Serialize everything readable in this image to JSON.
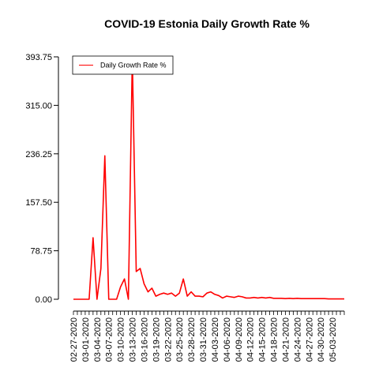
{
  "chart_data": {
    "type": "line",
    "title": "COVID-19 Estonia Daily Growth Rate %",
    "xlabel": "",
    "ylabel": "",
    "ylim": [
      0,
      393.75
    ],
    "y_ticks": [
      0,
      78.75,
      157.5,
      236.25,
      315,
      393.75
    ],
    "y_tick_labels": [
      "0.00",
      "78.75",
      "157.50",
      "236.25",
      "315.00",
      "393.75"
    ],
    "x_tick_labels": [
      "02-27-2020",
      "03-01-2020",
      "03-04-2020",
      "03-07-2020",
      "03-10-2020",
      "03-13-2020",
      "03-16-2020",
      "03-19-2020",
      "03-22-2020",
      "03-25-2020",
      "03-28-2020",
      "03-31-2020",
      "04-03-2020",
      "04-06-2020",
      "04-09-2020",
      "04-12-2020",
      "04-15-2020",
      "04-18-2020",
      "04-21-2020",
      "04-24-2020",
      "04-27-2020",
      "04-30-2020",
      "05-03-2020"
    ],
    "legend": {
      "position": "top-left",
      "entries": [
        "Daily Growth Rate %"
      ]
    },
    "grid": false,
    "series": [
      {
        "name": "Daily Growth Rate %",
        "color": "#ff0000",
        "x": [
          "02-27-2020",
          "02-28-2020",
          "02-29-2020",
          "03-01-2020",
          "03-02-2020",
          "03-03-2020",
          "03-04-2020",
          "03-05-2020",
          "03-06-2020",
          "03-07-2020",
          "03-08-2020",
          "03-09-2020",
          "03-10-2020",
          "03-11-2020",
          "03-12-2020",
          "03-13-2020",
          "03-14-2020",
          "03-15-2020",
          "03-16-2020",
          "03-17-2020",
          "03-18-2020",
          "03-19-2020",
          "03-20-2020",
          "03-21-2020",
          "03-22-2020",
          "03-23-2020",
          "03-24-2020",
          "03-25-2020",
          "03-26-2020",
          "03-27-2020",
          "03-28-2020",
          "03-29-2020",
          "03-30-2020",
          "03-31-2020",
          "04-01-2020",
          "04-02-2020",
          "04-03-2020",
          "04-04-2020",
          "04-05-2020",
          "04-06-2020",
          "04-07-2020",
          "04-08-2020",
          "04-09-2020",
          "04-10-2020",
          "04-11-2020",
          "04-12-2020",
          "04-13-2020",
          "04-14-2020",
          "04-15-2020",
          "04-16-2020",
          "04-17-2020",
          "04-18-2020",
          "04-19-2020",
          "04-20-2020",
          "04-21-2020",
          "04-22-2020",
          "04-23-2020",
          "04-24-2020",
          "04-25-2020",
          "04-26-2020",
          "04-27-2020",
          "04-28-2020",
          "04-29-2020",
          "04-30-2020",
          "05-01-2020",
          "05-02-2020",
          "05-03-2020",
          "05-04-2020",
          "05-05-2020",
          "05-06-2020"
        ],
        "values": [
          0,
          0,
          0,
          0,
          0,
          100,
          0,
          50,
          233,
          0,
          0,
          0,
          20,
          33,
          0,
          393.75,
          45,
          50,
          25,
          12,
          18,
          5,
          8,
          10,
          8,
          10,
          5,
          10,
          33,
          5,
          12,
          5,
          5,
          4,
          10,
          12,
          8,
          6,
          2,
          5,
          4,
          3,
          5,
          4,
          2,
          2,
          3,
          2,
          3,
          2,
          3,
          1.5,
          1.5,
          1.5,
          1,
          1.5,
          1,
          1.5,
          1,
          1,
          1,
          1,
          1,
          1,
          1,
          0.5,
          0.5,
          0.5,
          0.5,
          0.5
        ]
      }
    ]
  }
}
